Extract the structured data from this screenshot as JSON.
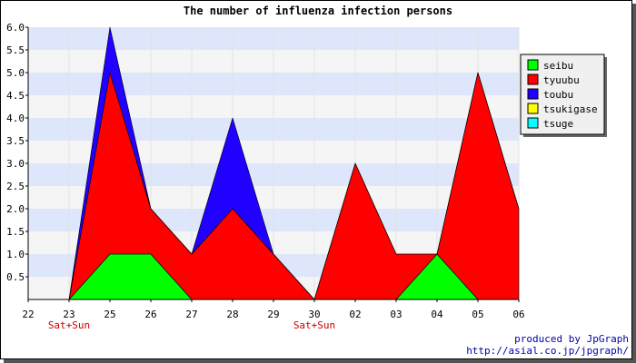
{
  "chart_data": {
    "type": "area",
    "stacked": true,
    "title": "The number of influenza infection persons",
    "categories": [
      "22",
      "23",
      "25",
      "26",
      "27",
      "28",
      "29",
      "30",
      "02",
      "03",
      "04",
      "05",
      "06"
    ],
    "sublabels": [
      "",
      "Sat+Sun",
      "",
      "",
      "",
      "",
      "",
      "Sat+Sun",
      "",
      "",
      "",
      "",
      ""
    ],
    "y_ticks": [
      "6.0",
      "5.5",
      "5.0",
      "4.5",
      "4.0",
      "3.5",
      "3.0",
      "2.5",
      "2.0",
      "1.5",
      "1.0",
      "0.5"
    ],
    "ylim": [
      0,
      6
    ],
    "legend_position": "right",
    "series": [
      {
        "name": "seibu",
        "color": "#00ff00",
        "values": [
          0,
          0,
          1,
          1,
          0,
          0,
          0,
          0,
          0,
          0,
          1,
          0,
          0
        ]
      },
      {
        "name": "tyuubu",
        "color": "#ff0000",
        "values": [
          0,
          0,
          4,
          1,
          1,
          2,
          1,
          0,
          3,
          1,
          0,
          5,
          2
        ]
      },
      {
        "name": "toubu",
        "color": "#2200ff",
        "values": [
          0,
          0,
          1,
          0,
          0,
          2,
          0,
          0,
          0,
          0,
          0,
          0,
          0
        ]
      },
      {
        "name": "tsukigase",
        "color": "#ffff00",
        "values": [
          0,
          0,
          0,
          0,
          0,
          0,
          0,
          0,
          0,
          0,
          0,
          0,
          0
        ]
      },
      {
        "name": "tsuge",
        "color": "#00ffff",
        "values": [
          0,
          0,
          0,
          0,
          0,
          0,
          0,
          0,
          0,
          0,
          0,
          0,
          0
        ]
      }
    ]
  },
  "credits": {
    "line1": "produced by JpGraph",
    "line2": "http://asial.co.jp/jpgraph/"
  }
}
